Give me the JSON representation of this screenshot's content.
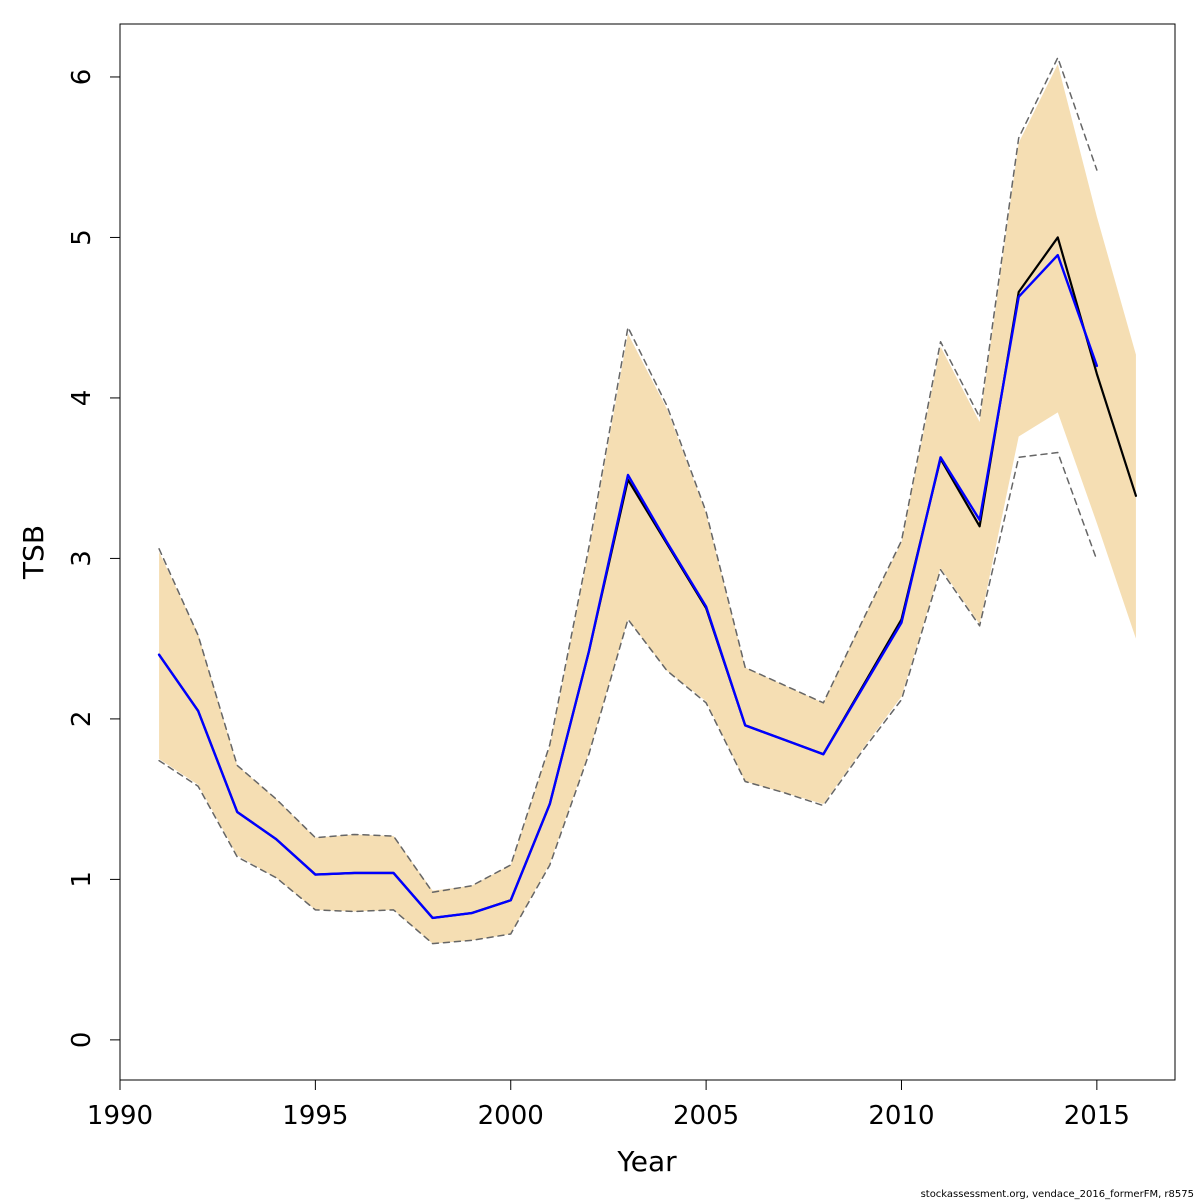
{
  "chart_data": {
    "type": "line",
    "xlabel": "Year",
    "ylabel": "TSB",
    "xlim": [
      1990,
      2017
    ],
    "ylim": [
      -0.25,
      6.33
    ],
    "x_ticks": [
      1990,
      1995,
      2000,
      2005,
      2010,
      2015
    ],
    "y_ticks": [
      0,
      1,
      2,
      3,
      4,
      5,
      6
    ],
    "grid": false,
    "colors": {
      "band": "#F5DEB3",
      "dashed": "#666666",
      "black_line": "#000000",
      "blue_line": "#0000FF"
    },
    "series": [
      {
        "style": "shaded-band",
        "x": [
          1991,
          1992,
          1993,
          1994,
          1995,
          1996,
          1997,
          1998,
          1999,
          2000,
          2001,
          2002,
          2003,
          2004,
          2005,
          2006,
          2007,
          2008,
          2009,
          2010,
          2011,
          2012,
          2013,
          2014,
          2015,
          2016
        ],
        "lower": [
          1.75,
          1.59,
          1.15,
          1.01,
          0.81,
          0.8,
          0.81,
          0.6,
          0.62,
          0.66,
          1.1,
          1.79,
          2.62,
          2.3,
          2.11,
          1.61,
          1.54,
          1.47,
          1.81,
          2.14,
          2.94,
          2.59,
          3.76,
          3.91,
          3.22,
          2.5
        ],
        "upper": [
          3.04,
          2.53,
          1.71,
          1.5,
          1.26,
          1.28,
          1.27,
          0.93,
          0.96,
          1.09,
          1.83,
          3.05,
          4.4,
          3.93,
          3.28,
          2.32,
          2.21,
          2.1,
          2.61,
          3.1,
          4.32,
          3.85,
          5.59,
          6.08,
          5.13,
          4.27
        ]
      },
      {
        "style": "dashed",
        "x": [
          1991,
          1992,
          1993,
          1994,
          1995,
          1996,
          1997,
          1998,
          1999,
          2000,
          2001,
          2002,
          2003,
          2004,
          2005,
          2006,
          2007,
          2008,
          2009,
          2010,
          2011,
          2012,
          2013,
          2014,
          2015
        ],
        "values": [
          1.74,
          1.58,
          1.14,
          1.01,
          0.81,
          0.8,
          0.81,
          0.6,
          0.62,
          0.66,
          1.09,
          1.78,
          2.62,
          2.3,
          2.1,
          1.61,
          1.54,
          1.46,
          1.8,
          2.12,
          2.93,
          2.58,
          3.63,
          3.66,
          2.99
        ]
      },
      {
        "style": "dashed",
        "x": [
          1991,
          1992,
          1993,
          1994,
          1995,
          1996,
          1997,
          1998,
          1999,
          2000,
          2001,
          2002,
          2003,
          2004,
          2005,
          2006,
          2007,
          2008,
          2009,
          2010,
          2011,
          2012,
          2013,
          2014,
          2015
        ],
        "values": [
          3.06,
          2.52,
          1.71,
          1.5,
          1.26,
          1.28,
          1.27,
          0.92,
          0.96,
          1.09,
          1.84,
          3.07,
          4.44,
          3.95,
          3.29,
          2.32,
          2.21,
          2.1,
          2.61,
          3.11,
          4.35,
          3.88,
          5.62,
          6.12,
          5.42
        ]
      },
      {
        "style": "solid-black",
        "x": [
          1991,
          1992,
          1993,
          1994,
          1995,
          1996,
          1997,
          1998,
          1999,
          2000,
          2001,
          2002,
          2003,
          2004,
          2005,
          2006,
          2007,
          2008,
          2009,
          2010,
          2011,
          2012,
          2013,
          2014,
          2015,
          2016
        ],
        "values": [
          2.4,
          2.05,
          1.42,
          1.25,
          1.03,
          1.04,
          1.04,
          0.76,
          0.79,
          0.87,
          1.47,
          2.42,
          3.49,
          3.09,
          2.69,
          1.96,
          1.87,
          1.78,
          2.2,
          2.62,
          3.62,
          3.2,
          4.66,
          5.0,
          4.15,
          3.39
        ]
      },
      {
        "style": "solid-blue",
        "x": [
          1991,
          1992,
          1993,
          1994,
          1995,
          1996,
          1997,
          1998,
          1999,
          2000,
          2001,
          2002,
          2003,
          2004,
          2005,
          2006,
          2007,
          2008,
          2009,
          2010,
          2011,
          2012,
          2013,
          2014,
          2015
        ],
        "values": [
          2.4,
          2.05,
          1.42,
          1.25,
          1.03,
          1.04,
          1.04,
          0.76,
          0.79,
          0.87,
          1.47,
          2.42,
          3.52,
          3.1,
          2.7,
          1.96,
          1.87,
          1.78,
          2.19,
          2.6,
          3.63,
          3.24,
          4.63,
          4.89,
          4.2
        ]
      }
    ]
  },
  "footer": "stockassessment.org, vendace_2016_formerFM, r8575"
}
